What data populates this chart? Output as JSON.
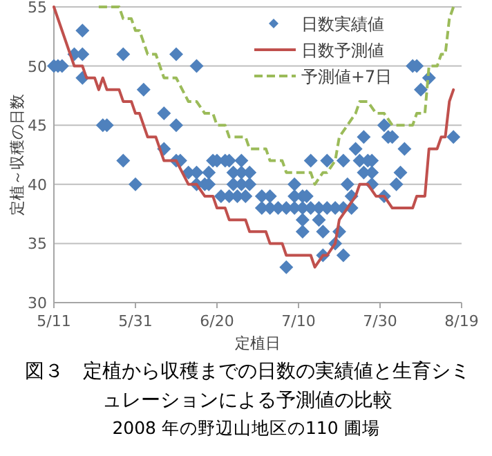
{
  "chart_data": {
    "type": "scatter",
    "title": "図３　定植から収穫までの日数の実績値と生育シミュレーションによる予測値の比較",
    "subtitle": "2008 年の野辺山地区の110 圃場",
    "xlabel": "定植日",
    "ylabel": "定植～収穫の日数",
    "xlim": [
      "--05-11",
      "--08-19"
    ],
    "xticks": [
      {
        "value": "--05-11",
        "label": "5/11"
      },
      {
        "value": "--05-31",
        "label": "5/31"
      },
      {
        "value": "--06-20",
        "label": "6/20"
      },
      {
        "value": "--07-10",
        "label": "7/10"
      },
      {
        "value": "--07-30",
        "label": "7/30"
      },
      {
        "value": "--08-19",
        "label": "8/19"
      }
    ],
    "ylim": [
      30,
      55
    ],
    "yticks": [
      30,
      35,
      40,
      45,
      50,
      55
    ],
    "grid": "y",
    "legend": "top right",
    "series": [
      {
        "name": "日数実績値",
        "marker": "diamond",
        "color": "#4f81bd",
        "x": [
          "--05-11",
          "--05-12",
          "--05-13",
          "--05-16",
          "--05-18",
          "--05-18",
          "--05-18",
          "--05-23",
          "--05-24",
          "--05-28",
          "--05-28",
          "--05-31",
          "--06-02",
          "--06-07",
          "--06-07",
          "--06-10",
          "--06-10",
          "--06-10",
          "--06-11",
          "--06-15",
          "--06-13",
          "--06-15",
          "--06-18",
          "--06-15",
          "--06-17",
          "--06-18",
          "--06-19",
          "--06-20",
          "--06-22",
          "--06-23",
          "--06-26",
          "--06-21",
          "--06-23",
          "--06-25",
          "--06-24",
          "--06-26",
          "--06-24",
          "--06-26",
          "--06-27",
          "--06-28",
          "--06-28",
          "--07-01",
          "--07-03",
          "--07-01",
          "--07-03",
          "--07-05",
          "--07-07",
          "--07-09",
          "--07-11",
          "--07-13",
          "--07-15",
          "--07-17",
          "--07-19",
          "--07-21",
          "--07-23",
          "--07-09",
          "--07-09",
          "--07-11",
          "--07-12",
          "--07-11",
          "--07-15",
          "--07-13",
          "--07-17",
          "--07-21",
          "--07-11",
          "--07-16",
          "--07-20",
          "--07-07",
          "--07-16",
          "--07-19",
          "--07-21",
          "--07-22",
          "--07-23",
          "--07-24",
          "--07-26",
          "--07-25",
          "--07-26",
          "--07-27",
          "--07-28",
          "--07-28",
          "--07-28",
          "--07-31",
          "--07-31",
          "--08-01",
          "--08-02",
          "--08-05",
          "--08-04",
          "--08-03",
          "--08-07",
          "--08-08",
          "--08-09",
          "--08-11",
          "--08-17"
        ],
        "values": [
          50,
          50,
          50,
          51,
          53,
          51,
          49,
          45,
          45,
          51,
          42,
          40,
          48,
          46,
          43,
          51,
          45,
          42,
          42,
          50,
          41,
          41,
          41,
          40,
          40,
          40,
          42,
          42,
          42,
          42,
          42,
          39,
          39,
          39,
          41,
          41,
          40,
          40,
          39,
          41,
          40,
          39,
          39,
          38,
          38,
          38,
          38,
          38,
          38,
          38,
          38,
          38,
          38,
          38,
          38,
          40,
          39,
          39,
          39,
          37,
          37,
          42,
          42,
          42,
          36,
          36,
          36,
          33,
          34,
          35,
          34,
          40,
          39,
          43,
          44,
          42,
          41,
          42,
          42,
          41,
          40,
          39,
          45,
          44,
          44,
          43,
          41,
          40,
          50,
          50,
          48,
          49,
          44
        ]
      },
      {
        "name": "日数予測値",
        "type": "line",
        "line_style": "solid",
        "color": "#c0504d",
        "x": [
          "--05-11",
          "--05-16",
          "--05-18",
          "--05-19",
          "--05-21",
          "--05-22",
          "--05-23",
          "--05-24",
          "--05-27",
          "--05-28",
          "--05-30",
          "--05-31",
          "--06-01",
          "--06-03",
          "--06-05",
          "--06-07",
          "--06-10",
          "--06-13",
          "--06-15",
          "--06-17",
          "--06-19",
          "--06-20",
          "--06-22",
          "--06-23",
          "--06-27",
          "--06-28",
          "--07-02",
          "--07-03",
          "--07-06",
          "--07-07",
          "--07-13",
          "--07-14",
          "--07-16",
          "--07-17",
          "--07-19",
          "--07-20",
          "--07-22",
          "--07-24",
          "--07-25",
          "--07-27",
          "--07-29",
          "--07-31",
          "--08-02",
          "--08-07",
          "--08-08",
          "--08-10",
          "--08-11",
          "--08-13",
          "--08-14",
          "--08-15",
          "--08-16",
          "--08-17"
        ],
        "values": [
          55,
          50,
          50,
          49,
          49,
          48,
          49,
          48,
          48,
          47,
          47,
          46,
          46,
          44,
          44,
          42,
          42,
          40,
          40,
          39,
          39,
          38,
          38,
          37,
          37,
          36,
          36,
          35,
          35,
          34,
          34,
          33,
          34,
          34,
          35,
          37,
          38,
          39,
          40,
          40,
          39,
          39,
          38,
          38,
          39,
          39,
          43,
          43,
          44,
          44,
          47,
          48
        ]
      },
      {
        "name": "予測値+7日",
        "type": "line",
        "line_style": "dashed",
        "color": "#9bbb59",
        "x": [
          "--05-22",
          "--05-24",
          "--05-27",
          "--05-28",
          "--05-30",
          "--05-31",
          "--06-01",
          "--06-03",
          "--06-05",
          "--06-07",
          "--06-10",
          "--06-13",
          "--06-15",
          "--06-17",
          "--06-19",
          "--06-20",
          "--06-22",
          "--06-23",
          "--06-27",
          "--06-28",
          "--07-02",
          "--07-03",
          "--07-06",
          "--07-07",
          "--07-13",
          "--07-14",
          "--07-16",
          "--07-17",
          "--07-19",
          "--07-20",
          "--07-22",
          "--07-24",
          "--07-25",
          "--07-27",
          "--07-29",
          "--07-31",
          "--08-02",
          "--08-07",
          "--08-08",
          "--08-10",
          "--08-11",
          "--08-13",
          "--08-14",
          "--08-15",
          "--08-16",
          "--08-17"
        ],
        "values": [
          55,
          55,
          55,
          54,
          54,
          53,
          53,
          51,
          51,
          49,
          49,
          47,
          47,
          46,
          46,
          45,
          45,
          44,
          44,
          43,
          43,
          42,
          42,
          41,
          41,
          40,
          41,
          41,
          42,
          44,
          45,
          46,
          47,
          47,
          46,
          46,
          45,
          45,
          46,
          46,
          50,
          50,
          51,
          51,
          54,
          55
        ]
      }
    ]
  }
}
